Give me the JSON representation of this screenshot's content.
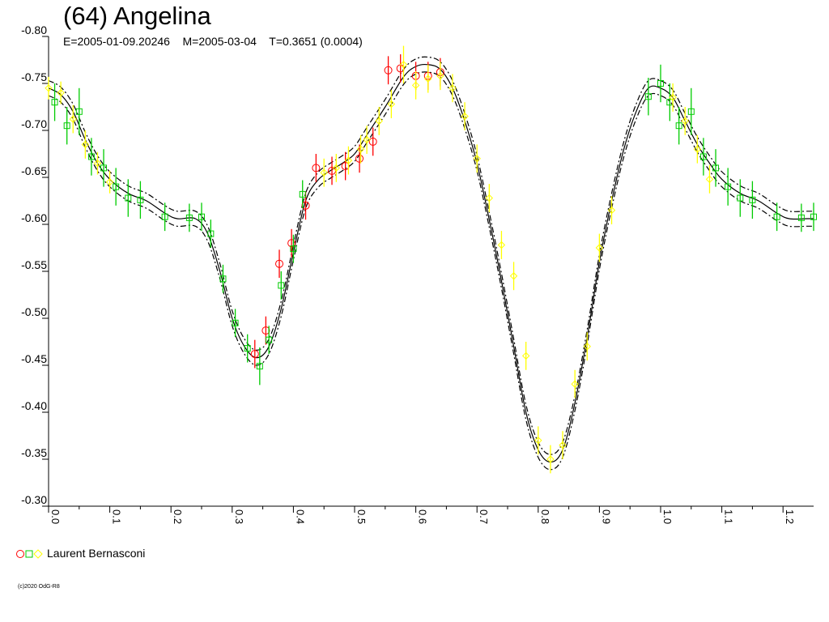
{
  "title": "(64) Angelina",
  "subtitle": "E=2005-01-09.20246    M=2005-03-04    T=0.3651 (0.0004)",
  "legend": {
    "label": "Laurent Bernasconi"
  },
  "copyright": "(c)2020 OdG-R8",
  "colors": {
    "circle": "#ff0000",
    "square": "#00cc00",
    "diamond": "#ffff00",
    "errorbar_red": "#ff0000",
    "errorbar_green": "#00cc00",
    "errorbar_yellow": "#ffff00",
    "curve": "#000000"
  },
  "chart_data": {
    "type": "scatter",
    "title": "(64) Angelina",
    "xlim": [
      0.0,
      1.25
    ],
    "ylim": [
      -0.8,
      -0.3
    ],
    "y_inverted": true,
    "x_ticks": [
      "0.0",
      "0.1",
      "0.2",
      "0.3",
      "0.4",
      "0.5",
      "0.6",
      "0.7",
      "0.8",
      "0.9",
      "1.0",
      "1.1",
      "1.2"
    ],
    "y_ticks": [
      "-0.80",
      "-0.75",
      "-0.70",
      "-0.65",
      "-0.60",
      "-0.55",
      "-0.50",
      "-0.45",
      "-0.40",
      "-0.35",
      "-0.30"
    ],
    "fit_curve": {
      "x": [
        0.0,
        0.02,
        0.04,
        0.06,
        0.08,
        0.1,
        0.13,
        0.16,
        0.19,
        0.21,
        0.24,
        0.26,
        0.28,
        0.3,
        0.32,
        0.34,
        0.36,
        0.38,
        0.4,
        0.42,
        0.44,
        0.46,
        0.48,
        0.5,
        0.52,
        0.55,
        0.58,
        0.6,
        0.62,
        0.64,
        0.66,
        0.68,
        0.7,
        0.72,
        0.74,
        0.76,
        0.78,
        0.8,
        0.82,
        0.84,
        0.86,
        0.88,
        0.9,
        0.92,
        0.94,
        0.96,
        0.98,
        1.0,
        1.02,
        1.04,
        1.06,
        1.08,
        1.1,
        1.13,
        1.16,
        1.19,
        1.21,
        1.24,
        1.25
      ],
      "y": [
        -0.745,
        -0.738,
        -0.72,
        -0.69,
        -0.665,
        -0.648,
        -0.633,
        -0.625,
        -0.612,
        -0.606,
        -0.606,
        -0.59,
        -0.55,
        -0.5,
        -0.47,
        -0.458,
        -0.47,
        -0.51,
        -0.57,
        -0.625,
        -0.647,
        -0.657,
        -0.665,
        -0.675,
        -0.695,
        -0.725,
        -0.757,
        -0.768,
        -0.77,
        -0.765,
        -0.745,
        -0.71,
        -0.665,
        -0.605,
        -0.54,
        -0.47,
        -0.4,
        -0.36,
        -0.347,
        -0.36,
        -0.41,
        -0.48,
        -0.56,
        -0.625,
        -0.68,
        -0.72,
        -0.745,
        -0.745,
        -0.735,
        -0.71,
        -0.685,
        -0.665,
        -0.648,
        -0.633,
        -0.625,
        -0.612,
        -0.606,
        -0.606,
        -0.606
      ],
      "band": 0.008
    },
    "series": [
      {
        "name": "Laurent Bernasconi (red)",
        "marker": "circle",
        "x": [
          0.337,
          0.355,
          0.377,
          0.397,
          0.42,
          0.437,
          0.463,
          0.485,
          0.508,
          0.53,
          0.555,
          0.575,
          0.6,
          0.62,
          0.64
        ],
        "y": [
          -0.462,
          -0.487,
          -0.558,
          -0.58,
          -0.62,
          -0.66,
          -0.657,
          -0.662,
          -0.67,
          -0.688,
          -0.764,
          -0.766,
          -0.758,
          -0.758,
          -0.762
        ],
        "err": [
          0.015,
          0.015,
          0.015,
          0.015,
          0.015,
          0.015,
          0.015,
          0.015,
          0.015,
          0.015,
          0.015,
          0.015,
          0.015,
          0.015,
          0.015
        ]
      },
      {
        "name": "Laurent Bernasconi (green)",
        "marker": "square",
        "x": [
          0.01,
          0.03,
          0.05,
          0.07,
          0.09,
          0.11,
          0.13,
          0.15,
          0.19,
          0.23,
          0.25,
          0.265,
          0.285,
          0.305,
          0.325,
          0.345,
          0.36,
          0.38,
          0.4,
          0.415,
          0.98,
          1.0,
          1.015,
          1.03,
          1.05,
          1.07,
          1.09,
          1.11,
          1.13,
          1.15,
          1.19,
          1.23,
          1.25
        ],
        "y": [
          -0.73,
          -0.705,
          -0.72,
          -0.672,
          -0.66,
          -0.64,
          -0.628,
          -0.626,
          -0.608,
          -0.607,
          -0.608,
          -0.59,
          -0.542,
          -0.495,
          -0.468,
          -0.449,
          -0.477,
          -0.535,
          -0.574,
          -0.632,
          -0.736,
          -0.75,
          -0.73,
          -0.705,
          -0.72,
          -0.672,
          -0.66,
          -0.64,
          -0.628,
          -0.626,
          -0.608,
          -0.607,
          -0.608
        ],
        "err": [
          0.02,
          0.02,
          0.025,
          0.02,
          0.02,
          0.02,
          0.02,
          0.02,
          0.015,
          0.015,
          0.015,
          0.015,
          0.015,
          0.015,
          0.015,
          0.02,
          0.015,
          0.015,
          0.015,
          0.015,
          0.02,
          0.02,
          0.02,
          0.02,
          0.025,
          0.02,
          0.02,
          0.02,
          0.02,
          0.02,
          0.015,
          0.015,
          0.015
        ]
      },
      {
        "name": "Laurent Bernasconi (yellow)",
        "marker": "diamond",
        "x": [
          0.0,
          0.02,
          0.04,
          0.06,
          0.08,
          0.1,
          0.45,
          0.47,
          0.49,
          0.51,
          0.52,
          0.54,
          0.56,
          0.58,
          0.6,
          0.62,
          0.64,
          0.66,
          0.68,
          0.7,
          0.72,
          0.74,
          0.76,
          0.78,
          0.8,
          0.82,
          0.84,
          0.86,
          0.88,
          0.9,
          0.92,
          1.02,
          1.04,
          1.06,
          1.08
        ],
        "y": [
          -0.745,
          -0.74,
          -0.712,
          -0.685,
          -0.665,
          -0.645,
          -0.655,
          -0.66,
          -0.668,
          -0.68,
          -0.69,
          -0.71,
          -0.728,
          -0.77,
          -0.748,
          -0.755,
          -0.758,
          -0.745,
          -0.715,
          -0.67,
          -0.628,
          -0.578,
          -0.545,
          -0.46,
          -0.37,
          -0.35,
          -0.365,
          -0.43,
          -0.47,
          -0.575,
          -0.615,
          -0.735,
          -0.71,
          -0.68,
          -0.648
        ],
        "err": [
          0.012,
          0.012,
          0.015,
          0.015,
          0.012,
          0.012,
          0.015,
          0.015,
          0.015,
          0.015,
          0.015,
          0.015,
          0.015,
          0.02,
          0.015,
          0.015,
          0.015,
          0.015,
          0.015,
          0.015,
          0.015,
          0.015,
          0.015,
          0.015,
          0.015,
          0.015,
          0.015,
          0.015,
          0.015,
          0.015,
          0.015,
          0.015,
          0.015,
          0.015,
          0.015
        ]
      }
    ]
  }
}
